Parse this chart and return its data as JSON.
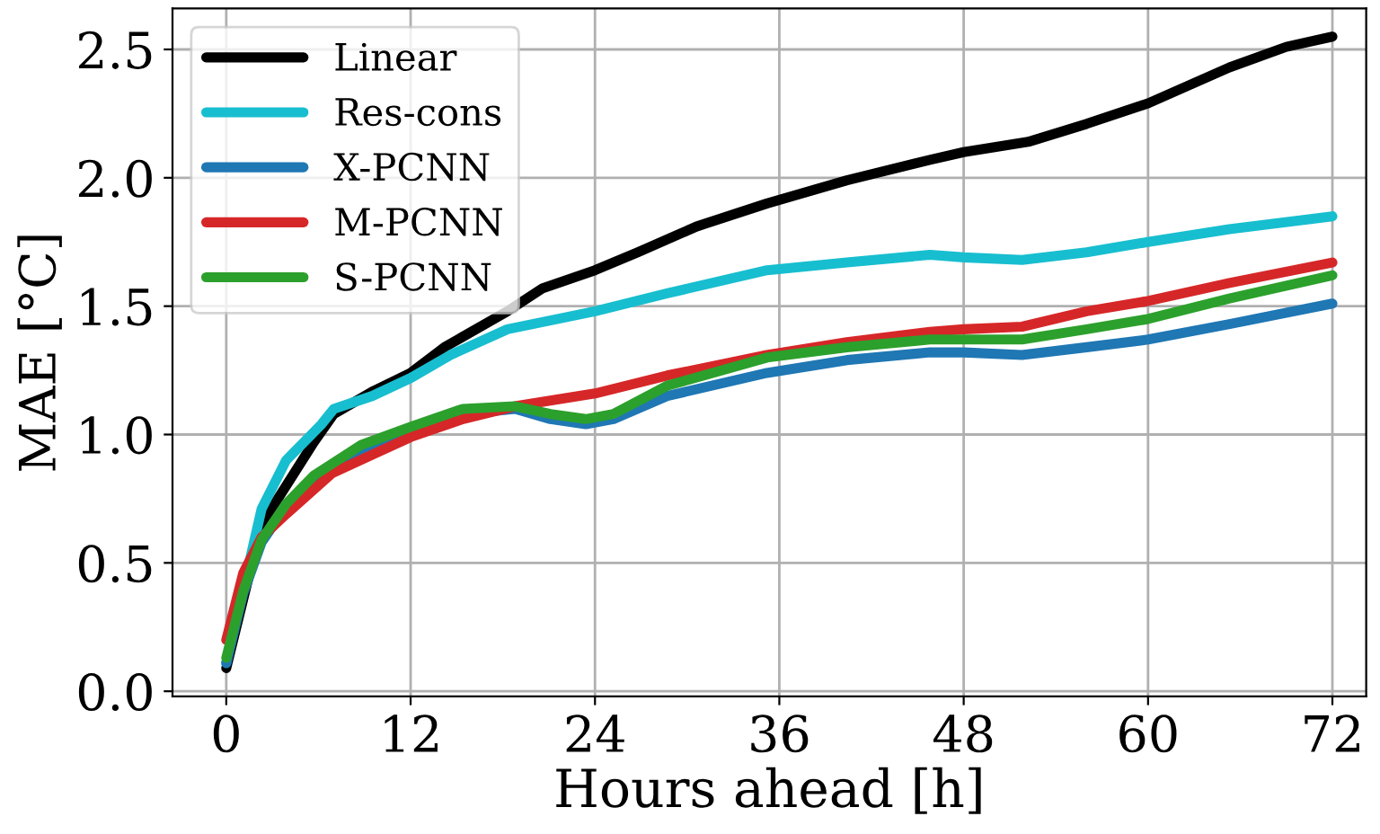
{
  "chart_data": {
    "type": "line",
    "xlabel": "Hours ahead [h]",
    "ylabel": "MAE [°C]",
    "xlim": [
      -3.5,
      74.2
    ],
    "ylim": [
      -0.02,
      2.66
    ],
    "xticks": [
      0,
      12,
      24,
      36,
      48,
      60,
      72
    ],
    "yticks": [
      {
        "value": 0,
        "label": "0.0"
      },
      0.5,
      {
        "value": 1,
        "label": "1.0"
      },
      1.5,
      {
        "value": 2,
        "label": "2.0"
      },
      2.5
    ],
    "grid": true,
    "legend": "top left",
    "marker": "none",
    "line_style": "solid",
    "series": [
      {
        "name": "Linear",
        "color": "#000000",
        "x": [
          0,
          2.3,
          5.7,
          7.0,
          9.6,
          12,
          14.2,
          18.3,
          20.6,
          24,
          26.8,
          30.6,
          35.2,
          40.4,
          45.8,
          48,
          52.2,
          56,
          60,
          65.3,
          69,
          72
        ],
        "values": [
          0.09,
          0.65,
          0.97,
          1.08,
          1.17,
          1.24,
          1.34,
          1.48,
          1.57,
          1.64,
          1.71,
          1.81,
          1.9,
          1.99,
          2.07,
          2.1,
          2.14,
          2.21,
          2.29,
          2.43,
          2.51,
          2.55
        ]
      },
      {
        "name": "Res-cons",
        "color": "#17becf",
        "x": [
          0,
          2.3,
          3.9,
          6.2,
          7.0,
          9.5,
          12,
          14.6,
          18.3,
          24,
          28.7,
          35.2,
          40.4,
          45.8,
          48,
          51.8,
          56,
          60,
          65.3,
          72
        ],
        "values": [
          0.11,
          0.71,
          0.9,
          1.04,
          1.1,
          1.15,
          1.22,
          1.31,
          1.41,
          1.48,
          1.55,
          1.64,
          1.67,
          1.7,
          1.69,
          1.68,
          1.71,
          1.75,
          1.8,
          1.85
        ]
      },
      {
        "name": "X-PCNN",
        "color": "#1f77b4",
        "x": [
          0,
          1.1,
          2.3,
          3.9,
          5.7,
          8.8,
          12,
          15.4,
          18.8,
          21.1,
          23.4,
          25.2,
          28.7,
          35.2,
          40.4,
          45.8,
          48,
          51.8,
          56,
          60,
          65.3,
          72
        ],
        "values": [
          0.11,
          0.38,
          0.58,
          0.72,
          0.83,
          0.94,
          1.01,
          1.08,
          1.1,
          1.06,
          1.04,
          1.06,
          1.15,
          1.24,
          1.29,
          1.32,
          1.32,
          1.31,
          1.34,
          1.37,
          1.43,
          1.51
        ]
      },
      {
        "name": "M-PCNN",
        "color": "#d62728",
        "x": [
          0,
          1.1,
          2.3,
          3.9,
          6.9,
          12,
          15.4,
          18.8,
          24,
          28.7,
          35.2,
          40.4,
          45.8,
          48,
          51.8,
          56,
          60,
          65.3,
          72
        ],
        "values": [
          0.2,
          0.46,
          0.6,
          0.69,
          0.85,
          0.99,
          1.06,
          1.11,
          1.16,
          1.23,
          1.31,
          1.36,
          1.4,
          1.41,
          1.42,
          1.48,
          1.52,
          1.59,
          1.67
        ]
      },
      {
        "name": "S-PCNN",
        "color": "#2ca02c",
        "x": [
          0,
          1.1,
          2.3,
          3.9,
          5.7,
          8.8,
          12,
          15.4,
          18.8,
          21.1,
          23.4,
          25.2,
          28.7,
          35.2,
          40.4,
          45.8,
          48,
          51.8,
          56,
          60,
          65.3,
          72
        ],
        "values": [
          0.13,
          0.39,
          0.59,
          0.73,
          0.84,
          0.96,
          1.03,
          1.1,
          1.11,
          1.08,
          1.06,
          1.08,
          1.19,
          1.3,
          1.34,
          1.37,
          1.37,
          1.37,
          1.41,
          1.45,
          1.53,
          1.62
        ]
      }
    ]
  }
}
